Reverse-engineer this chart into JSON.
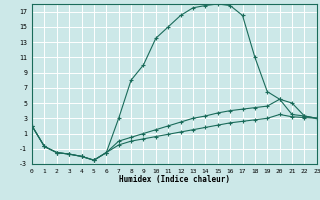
{
  "xlabel": "Humidex (Indice chaleur)",
  "bg_color": "#cce8e8",
  "grid_color": "#ffffff",
  "line_color": "#1a6b5a",
  "xlim": [
    0,
    23
  ],
  "ylim": [
    -3,
    18
  ],
  "xticks": [
    0,
    1,
    2,
    3,
    4,
    5,
    6,
    7,
    8,
    9,
    10,
    11,
    12,
    13,
    14,
    15,
    16,
    17,
    18,
    19,
    20,
    21,
    22,
    23
  ],
  "yticks": [
    -3,
    -1,
    1,
    3,
    5,
    7,
    9,
    11,
    13,
    15,
    17
  ],
  "curve1_x": [
    0,
    1,
    2,
    3,
    4,
    5,
    6,
    7,
    8,
    9,
    10,
    11,
    12,
    13,
    14,
    15,
    16,
    17,
    18,
    19,
    20,
    21,
    22,
    23
  ],
  "curve1_y": [
    2,
    -0.7,
    -1.5,
    -1.7,
    -2.0,
    -2.5,
    -1.5,
    3.0,
    8.0,
    10.0,
    13.5,
    15.0,
    16.5,
    17.5,
    17.8,
    18.0,
    17.8,
    16.5,
    11.0,
    6.5,
    5.5,
    5.0,
    3.3,
    3.0
  ],
  "curve2_x": [
    0,
    1,
    2,
    3,
    4,
    5,
    6,
    7,
    8,
    9,
    10,
    11,
    12,
    13,
    14,
    15,
    16,
    17,
    18,
    19,
    20,
    21,
    22,
    23
  ],
  "curve2_y": [
    2,
    -0.7,
    -1.5,
    -1.7,
    -2.0,
    -2.5,
    -1.5,
    0.0,
    0.5,
    1.0,
    1.5,
    2.0,
    2.5,
    3.0,
    3.3,
    3.7,
    4.0,
    4.2,
    4.4,
    4.6,
    5.5,
    3.5,
    3.3,
    3.0
  ],
  "curve3_x": [
    0,
    1,
    2,
    3,
    4,
    5,
    6,
    7,
    8,
    9,
    10,
    11,
    12,
    13,
    14,
    15,
    16,
    17,
    18,
    19,
    20,
    21,
    22,
    23
  ],
  "curve3_y": [
    2,
    -0.7,
    -1.5,
    -1.7,
    -2.0,
    -2.5,
    -1.5,
    -0.5,
    0.0,
    0.3,
    0.6,
    0.9,
    1.2,
    1.5,
    1.8,
    2.1,
    2.4,
    2.6,
    2.8,
    3.0,
    3.5,
    3.2,
    3.1,
    3.0
  ]
}
